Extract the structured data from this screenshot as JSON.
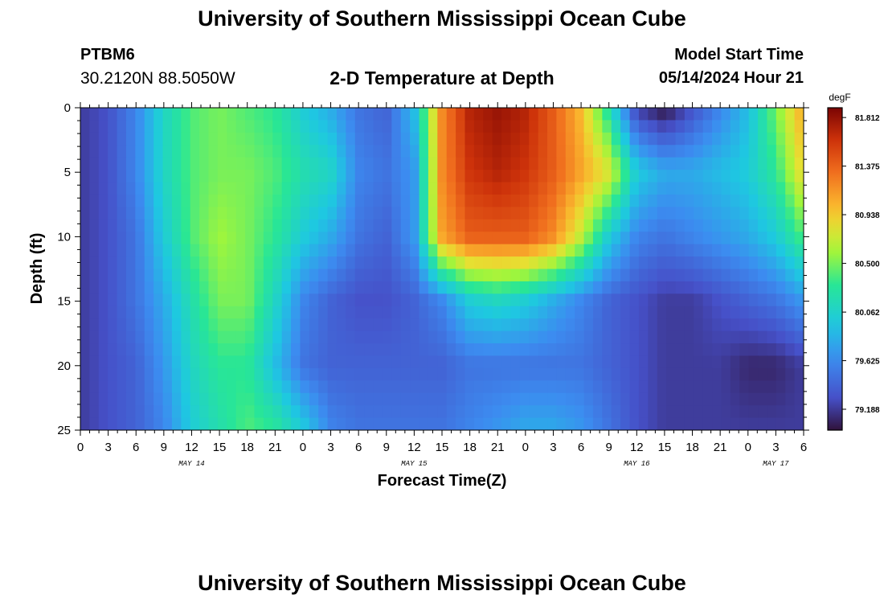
{
  "header": {
    "title": "University of Southern Mississippi Ocean Cube",
    "station": "PTBM6",
    "coords": "30.2120N  88.5050W",
    "subtitle": "2-D Temperature at Depth",
    "start_label": "Model Start Time",
    "start_value": "05/14/2024 Hour 21"
  },
  "footer": {
    "title": "University of Southern Mississippi Ocean Cube"
  },
  "chart_data": {
    "type": "heatmap",
    "title": "2-D Temperature at Depth",
    "xlabel": "Forecast Time(Z)",
    "ylabel": "Depth (ft)",
    "x_range_hours": [
      0,
      78
    ],
    "x_tick_labels": [
      "0",
      "3",
      "6",
      "9",
      "12",
      "15",
      "18",
      "21",
      "0",
      "3",
      "6",
      "9",
      "12",
      "15",
      "18",
      "21",
      "0",
      "3",
      "6",
      "9",
      "12",
      "15",
      "18",
      "21",
      "0",
      "3",
      "6"
    ],
    "date_labels": [
      {
        "text": "MAY 14",
        "hour": 12
      },
      {
        "text": "MAY 15",
        "hour": 36
      },
      {
        "text": "MAY 16",
        "hour": 60
      },
      {
        "text": "MAY 17",
        "hour": 75
      }
    ],
    "ylim": [
      0,
      25
    ],
    "y_ticks": [
      0,
      5,
      10,
      15,
      20,
      25
    ],
    "y_inverted": true,
    "colorbar": {
      "unit": "degF",
      "min": 79.0,
      "max": 81.9,
      "tick_labels": [
        "81.812",
        "81.375",
        "80.938",
        "80.500",
        "80.062",
        "79.625",
        "79.188"
      ],
      "tick_values": [
        81.812,
        81.375,
        80.938,
        80.5,
        80.062,
        79.625,
        79.188
      ]
    },
    "depths_ft": [
      0,
      5,
      10,
      15,
      20,
      25
    ],
    "hours": [
      0,
      3,
      6,
      9,
      12,
      15,
      18,
      21,
      24,
      27,
      30,
      33,
      36,
      39,
      42,
      45,
      48,
      51,
      54,
      57,
      60,
      63,
      66,
      69,
      72,
      75,
      78
    ],
    "values": [
      [
        79.2,
        79.3,
        79.6,
        80.1,
        80.4,
        80.5,
        80.4,
        80.3,
        80.0,
        79.8,
        79.5,
        79.4,
        79.9,
        81.2,
        81.7,
        81.8,
        81.7,
        81.4,
        81.0,
        80.2,
        79.2,
        79.0,
        79.3,
        79.6,
        79.9,
        80.5,
        81.1
      ],
      [
        79.2,
        79.3,
        79.6,
        80.1,
        80.4,
        80.5,
        80.5,
        80.4,
        80.2,
        80.1,
        79.6,
        79.5,
        79.7,
        81.2,
        81.6,
        81.7,
        81.6,
        81.4,
        81.1,
        80.8,
        80.0,
        79.8,
        79.8,
        79.9,
        80.0,
        80.3,
        80.9
      ],
      [
        79.2,
        79.3,
        79.5,
        80.0,
        80.4,
        80.6,
        80.5,
        80.3,
        80.0,
        79.8,
        79.5,
        79.4,
        79.7,
        81.1,
        81.4,
        81.4,
        81.4,
        81.2,
        80.7,
        80.0,
        79.6,
        79.5,
        79.6,
        79.7,
        79.8,
        80.0,
        80.4
      ],
      [
        79.2,
        79.3,
        79.5,
        79.8,
        80.2,
        80.5,
        80.5,
        80.1,
        79.6,
        79.4,
        79.3,
        79.3,
        79.4,
        79.6,
        80.0,
        80.1,
        80.0,
        79.8,
        79.6,
        79.4,
        79.3,
        79.2,
        79.2,
        79.3,
        79.4,
        79.5,
        79.7
      ],
      [
        79.2,
        79.3,
        79.4,
        79.7,
        80.1,
        80.3,
        80.3,
        79.9,
        79.5,
        79.4,
        79.4,
        79.4,
        79.4,
        79.4,
        79.5,
        79.5,
        79.5,
        79.5,
        79.5,
        79.4,
        79.3,
        79.2,
        79.2,
        79.2,
        79.1,
        79.1,
        79.2
      ],
      [
        79.2,
        79.3,
        79.4,
        79.6,
        80.0,
        80.2,
        80.4,
        80.3,
        80.0,
        79.6,
        79.5,
        79.5,
        79.5,
        79.5,
        79.6,
        79.7,
        79.8,
        79.8,
        79.7,
        79.5,
        79.3,
        79.2,
        79.2,
        79.2,
        79.2,
        79.2,
        79.2
      ]
    ]
  }
}
